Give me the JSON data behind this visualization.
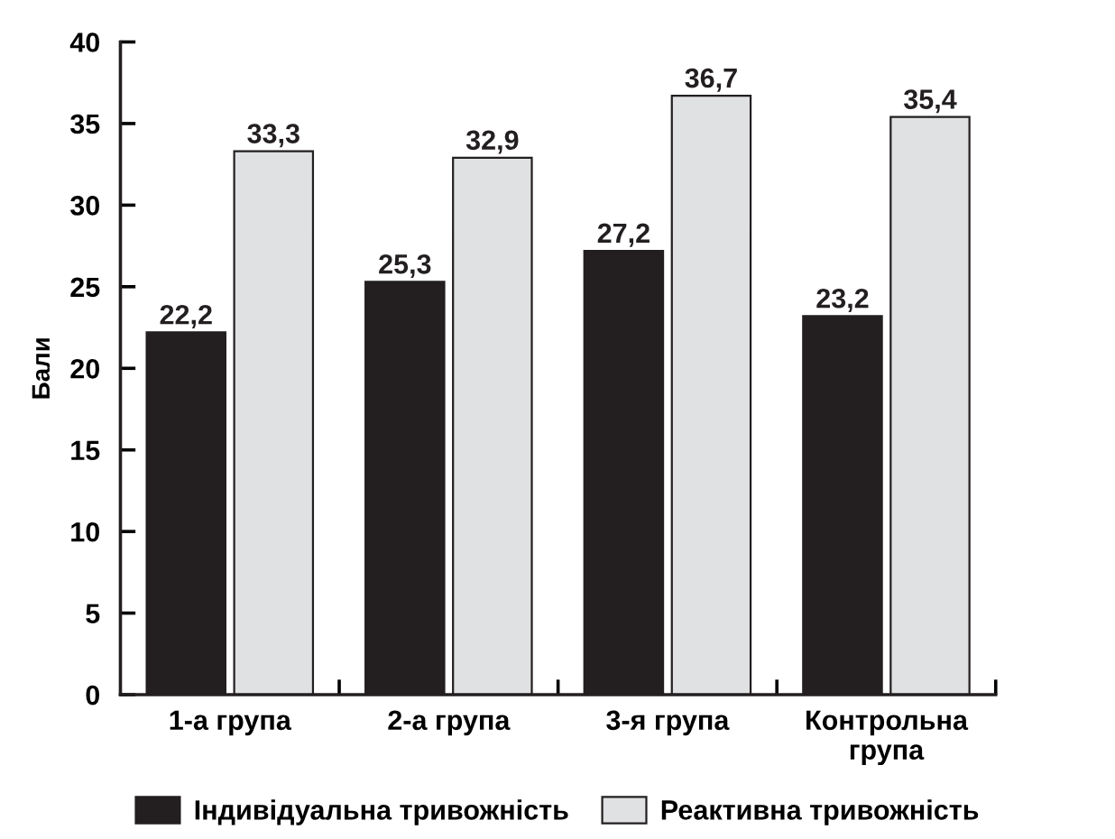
{
  "chart_data": {
    "type": "bar",
    "ylabel": "Бали",
    "categories": [
      "1-а група",
      "2-а група",
      "3-я група",
      "Контрольна\nгрупа"
    ],
    "series": [
      {
        "name": "Індивідуальна тривожність",
        "color": "#231f20",
        "values": [
          22.2,
          25.3,
          27.2,
          23.2
        ],
        "value_labels": [
          "22,2",
          "25,3",
          "27,2",
          "23,2"
        ]
      },
      {
        "name": "Реактивна тривожність",
        "color": "#e0e1e3",
        "values": [
          33.3,
          32.9,
          36.7,
          35.4
        ],
        "value_labels": [
          "33,3",
          "32,9",
          "36,7",
          "35,4"
        ]
      }
    ],
    "ylim": [
      0,
      40
    ],
    "yticks": [
      0,
      5,
      10,
      15,
      20,
      25,
      30,
      35,
      40
    ],
    "grid": false,
    "legend": "bottom"
  }
}
